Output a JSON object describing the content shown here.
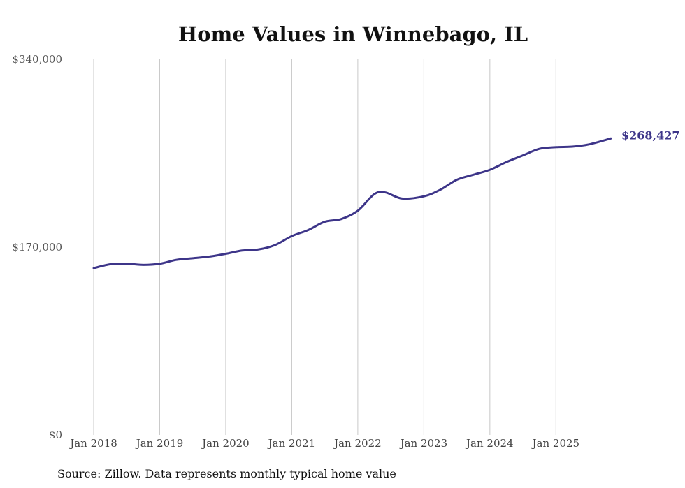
{
  "chart_data": {
    "type": "line",
    "title": "Home Values in Winnebago, IL",
    "source_note": "Source: Zillow. Data represents monthly typical home value",
    "xlabel": "",
    "ylabel": "",
    "ylim": [
      0,
      340000
    ],
    "y_ticks": [
      {
        "value": 340000,
        "label": "$340,000"
      },
      {
        "value": 170000,
        "label": "$170,000"
      },
      {
        "value": 0,
        "label": "$0"
      }
    ],
    "x_ticks": [
      {
        "value": 2018.0,
        "label": "Jan 2018"
      },
      {
        "value": 2019.0,
        "label": "Jan 2019"
      },
      {
        "value": 2020.0,
        "label": "Jan 2020"
      },
      {
        "value": 2021.0,
        "label": "Jan 2021"
      },
      {
        "value": 2022.0,
        "label": "Jan 2022"
      },
      {
        "value": 2023.0,
        "label": "Jan 2023"
      },
      {
        "value": 2024.0,
        "label": "Jan 2024"
      },
      {
        "value": 2025.0,
        "label": "Jan 2025"
      }
    ],
    "xlim": [
      2018.0,
      2025.833
    ],
    "grid": "vertical",
    "series": [
      {
        "name": "Typical home value",
        "color": "#3d3589",
        "end_label": "$268,427",
        "points": [
          [
            2018.0,
            151000
          ],
          [
            2018.25,
            154500
          ],
          [
            2018.5,
            155000
          ],
          [
            2018.75,
            154000
          ],
          [
            2019.0,
            155000
          ],
          [
            2019.25,
            158500
          ],
          [
            2019.5,
            160000
          ],
          [
            2019.75,
            161500
          ],
          [
            2020.0,
            164000
          ],
          [
            2020.25,
            167000
          ],
          [
            2020.5,
            168000
          ],
          [
            2020.75,
            172000
          ],
          [
            2021.0,
            180000
          ],
          [
            2021.25,
            185500
          ],
          [
            2021.5,
            193000
          ],
          [
            2021.75,
            195500
          ],
          [
            2022.0,
            203000
          ],
          [
            2022.25,
            218000
          ],
          [
            2022.42,
            219500
          ],
          [
            2022.67,
            214000
          ],
          [
            2023.0,
            216000
          ],
          [
            2023.25,
            222000
          ],
          [
            2023.5,
            231000
          ],
          [
            2023.75,
            235500
          ],
          [
            2024.0,
            240000
          ],
          [
            2024.25,
            247000
          ],
          [
            2024.5,
            253000
          ],
          [
            2024.75,
            259000
          ],
          [
            2025.0,
            260500
          ],
          [
            2025.25,
            261000
          ],
          [
            2025.5,
            263000
          ],
          [
            2025.833,
            268427
          ]
        ]
      }
    ]
  }
}
